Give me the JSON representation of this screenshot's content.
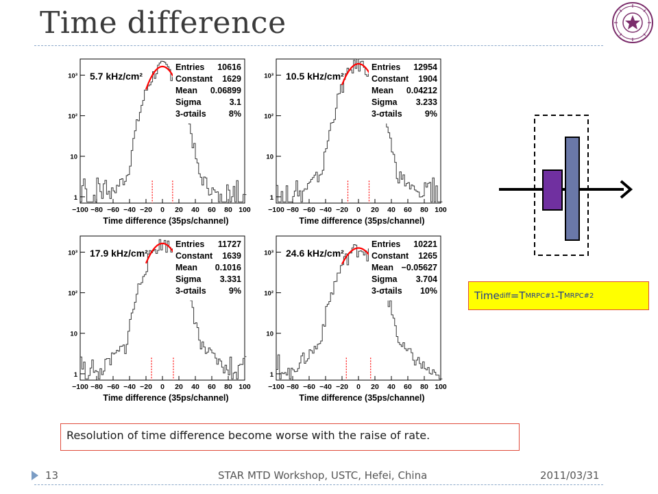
{
  "slide": {
    "title": "Time difference",
    "page_number": "13",
    "footer_center": "STAR MTD Workshop, USTC, Hefei, China",
    "footer_date": "2011/03/31",
    "conclusion": "Resolution of time difference become worse with the raise of rate.",
    "formula": {
      "base": "Time",
      "sub1": "diff",
      "eq": " =T",
      "sub2": "MRPC#1",
      "minus": "-T",
      "sub3": "MRPC#2"
    }
  },
  "colors": {
    "accent": "#7a9cc4",
    "fit": "#ff0000",
    "box_fill": "#ffff00",
    "box_border": "#e04a3a",
    "mrpc1": "#7030a0",
    "mrpc2": "#6a78a8"
  },
  "icons": [
    "university-seal-icon",
    "arrow-icon"
  ],
  "chart_data": [
    {
      "type": "line",
      "rate": "5.7 kHz/cm²",
      "entries": "10616",
      "constant": "1629",
      "mean": "0.06899",
      "sigma": "3.1",
      "tails": "8%",
      "xlabel": "Time difference (35ps/channel)",
      "xlim": [
        -100,
        100
      ],
      "ylim": [
        0.7,
        2500
      ],
      "yscale": "log",
      "xticks": [
        "−100",
        "−80",
        "−60",
        "−40",
        "−20",
        "0",
        "20",
        "40",
        "60",
        "80",
        "100"
      ],
      "yticks": [
        "1",
        "10",
        "10²",
        "10³"
      ],
      "stat_labels": [
        "Entries",
        "Constant",
        "Mean",
        "Sigma",
        "3-σtails"
      ]
    },
    {
      "type": "line",
      "rate": "10.5 kHz/cm²",
      "entries": "12954",
      "constant": "1904",
      "mean": "0.04212",
      "sigma": "3.233",
      "tails": "9%",
      "xlabel": "Time difference (35ps/channel)",
      "xlim": [
        -100,
        100
      ],
      "ylim": [
        0.7,
        2500
      ],
      "yscale": "log",
      "xticks": [
        "−100",
        "−80",
        "−60",
        "−40",
        "−20",
        "0",
        "20",
        "40",
        "60",
        "80",
        "100"
      ],
      "yticks": [
        "1",
        "10",
        "10²",
        "10³"
      ],
      "stat_labels": [
        "Entries",
        "Constant",
        "Mean",
        "Sigma",
        "3-σtails"
      ]
    },
    {
      "type": "line",
      "rate": "17.9 kHz/cm²",
      "entries": "11727",
      "constant": "1639",
      "mean": "0.1016",
      "sigma": "3.331",
      "tails": "9%",
      "xlabel": "Time difference (35ps/channel)",
      "xlim": [
        -100,
        100
      ],
      "ylim": [
        0.7,
        2500
      ],
      "yscale": "log",
      "xticks": [
        "−100",
        "−80",
        "−60",
        "−40",
        "−20",
        "0",
        "20",
        "40",
        "60",
        "80",
        "100"
      ],
      "yticks": [
        "1",
        "10",
        "10²",
        "10³"
      ],
      "stat_labels": [
        "Entries",
        "Constant",
        "Mean",
        "Sigma",
        "3-σtails"
      ]
    },
    {
      "type": "line",
      "rate": "24.6 kHz/cm²",
      "entries": "10221",
      "constant": "1265",
      "mean": "−0.05627",
      "sigma": "3.704",
      "tails": "10%",
      "xlabel": "Time difference (35ps/channel)",
      "xlim": [
        -100,
        100
      ],
      "ylim": [
        0.7,
        2500
      ],
      "yscale": "log",
      "xticks": [
        "−100",
        "−80",
        "−60",
        "−40",
        "−20",
        "0",
        "20",
        "40",
        "60",
        "80",
        "100"
      ],
      "yticks": [
        "1",
        "10",
        "10²",
        "10³"
      ],
      "stat_labels": [
        "Entries",
        "Constant",
        "Mean",
        "Sigma",
        "3-σtails"
      ]
    }
  ]
}
